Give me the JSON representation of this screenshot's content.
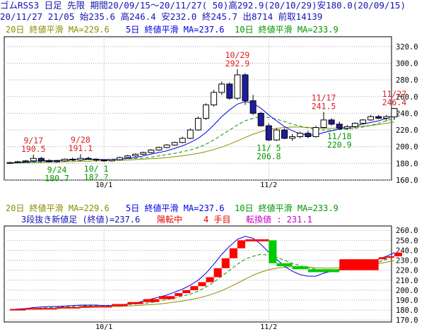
{
  "header": {
    "line1": "ゴムRSS3 日足 先限 期間20/09/15～20/11/27( 50)高292.9(20/10/29)安180.0(20/09/15)",
    "line2": "20/11/27 21/05 始235.6 高246.4 安232.0 終245.7 出8714 前取14139"
  },
  "colors": {
    "up_candle": "#ffffff",
    "down_candle": "#1e1ea0",
    "ma20": "#8c8c00",
    "ma5": "#0000e6",
    "ma10": "#009600",
    "high_label": "#dc1e1e",
    "low_label": "#009600",
    "brick_up": "#ff0000",
    "brick_down": "#00cc00",
    "grid": "#a8a8a8",
    "axis_text": "#000000"
  },
  "chart_data": [
    {
      "type": "candlestick",
      "legend": {
        "ma20": "20日 終値平滑 MA=229.6",
        "ma5": "5日 終値平滑 MA=237.6",
        "ma10": "10日 終値平滑 MA=233.9"
      },
      "y_ticks": [
        "320.0",
        "300.0",
        "280.0",
        "260.0",
        "240.0",
        "220.0",
        "200.0",
        "180.0",
        "160.0"
      ],
      "ylim": [
        160,
        330
      ],
      "x_ticks": [
        {
          "label": "10/1",
          "index": 12
        },
        {
          "label": "11/2",
          "index": 33
        }
      ],
      "candles": [
        [
          180.0,
          182.0,
          179.5,
          181.0
        ],
        [
          181.0,
          183.0,
          180.0,
          182.0
        ],
        [
          182.0,
          184.0,
          181.0,
          183.0
        ],
        [
          183.0,
          190.5,
          182.0,
          186.0
        ],
        [
          186.0,
          188.0,
          181.0,
          183.0
        ],
        [
          183.0,
          185.0,
          181.0,
          182.0
        ],
        [
          182.0,
          184.0,
          180.7,
          183.0
        ],
        [
          183.0,
          186.0,
          182.0,
          185.0
        ],
        [
          185.0,
          187.0,
          183.0,
          184.0
        ],
        [
          184.0,
          191.1,
          183.0,
          186.0
        ],
        [
          186.0,
          188.0,
          184.0,
          185.0
        ],
        [
          185.0,
          186.0,
          182.0,
          184.0
        ],
        [
          184.0,
          185.0,
          182.0,
          183.0
        ],
        [
          183.0,
          185.0,
          182.0,
          184.5
        ],
        [
          184.5,
          188.0,
          184.0,
          187.0
        ],
        [
          187.0,
          190.0,
          186.0,
          189.0
        ],
        [
          189.0,
          192.0,
          188.0,
          191.0
        ],
        [
          191.0,
          194.0,
          190.0,
          193.0
        ],
        [
          193.0,
          197.0,
          192.0,
          196.0
        ],
        [
          196.0,
          200.0,
          195.0,
          199.0
        ],
        [
          199.0,
          203.0,
          198.0,
          202.0
        ],
        [
          202.0,
          206.0,
          201.0,
          205.0
        ],
        [
          205.0,
          212.0,
          204.0,
          210.0
        ],
        [
          210.0,
          222.0,
          209.0,
          220.0
        ],
        [
          220.0,
          236.0,
          219.0,
          234.0
        ],
        [
          234.0,
          252.0,
          232.0,
          250.0
        ],
        [
          250.0,
          268.0,
          248.0,
          265.0
        ],
        [
          265.0,
          278.0,
          262.0,
          275.0
        ],
        [
          275.0,
          277.0,
          256.0,
          258.0
        ],
        [
          258.0,
          292.9,
          256.0,
          286.0
        ],
        [
          286.0,
          288.0,
          250.0,
          255.0
        ],
        [
          255.0,
          262.0,
          238.0,
          240.0
        ],
        [
          240.0,
          242.0,
          224.0,
          225.0
        ],
        [
          225.0,
          228.0,
          206.8,
          208.0
        ],
        [
          208.0,
          222.0,
          207.0,
          220.0
        ],
        [
          220.0,
          222.0,
          209.0,
          210.0
        ],
        [
          210.0,
          215.0,
          207.0,
          212.0
        ],
        [
          212.0,
          218.0,
          210.0,
          216.0
        ],
        [
          216.0,
          219.0,
          210.0,
          212.0
        ],
        [
          212.0,
          225.0,
          211.0,
          223.0
        ],
        [
          223.0,
          241.5,
          222.0,
          232.0
        ],
        [
          232.0,
          234.0,
          225.0,
          227.0
        ],
        [
          227.0,
          230.0,
          220.9,
          222.0
        ],
        [
          222.0,
          226.0,
          220.0,
          224.0
        ],
        [
          224.0,
          229.0,
          222.0,
          228.0
        ],
        [
          228.0,
          233.0,
          227.0,
          232.0
        ],
        [
          232.0,
          238.0,
          231.0,
          236.0
        ],
        [
          236.0,
          238.0,
          233.0,
          234.0
        ],
        [
          234.0,
          238.0,
          231.0,
          236.0
        ],
        [
          235.6,
          246.4,
          232.0,
          245.7
        ]
      ],
      "ma5_values": [
        180.5,
        181.0,
        181.5,
        182.5,
        183.0,
        183.5,
        183.5,
        184.0,
        184.5,
        185.0,
        185.0,
        185.0,
        184.5,
        184.5,
        185.0,
        186.0,
        187.0,
        189.0,
        191.0,
        193.0,
        195.0,
        198.0,
        201.0,
        205.0,
        210.0,
        217.0,
        226.0,
        236.0,
        244.0,
        251.0,
        254.0,
        252.0,
        246.0,
        238.0,
        231.0,
        224.0,
        219.0,
        215.5,
        214.0,
        214.0,
        217.0,
        219.0,
        221.0,
        223.0,
        225.0,
        227.0,
        229.0,
        231.0,
        234.0,
        237.6
      ],
      "ma10_values": [
        180.5,
        181.0,
        181.0,
        181.5,
        182.0,
        182.5,
        183.0,
        183.5,
        183.5,
        184.0,
        184.5,
        184.5,
        184.5,
        185.0,
        185.0,
        185.5,
        186.0,
        186.5,
        187.5,
        189.0,
        190.5,
        192.0,
        194.0,
        196.0,
        199.0,
        203.0,
        208.0,
        214.0,
        220.0,
        226.0,
        231.0,
        234.0,
        236.0,
        235.0,
        233.0,
        230.0,
        227.0,
        224.5,
        222.5,
        221.0,
        220.0,
        220.0,
        220.5,
        221.0,
        222.0,
        223.5,
        225.5,
        228.0,
        231.0,
        233.9
      ],
      "ma20_values": [
        180.0,
        180.5,
        180.5,
        181.0,
        181.0,
        181.5,
        181.5,
        182.0,
        182.0,
        182.5,
        182.5,
        183.0,
        183.0,
        183.5,
        183.5,
        184.0,
        184.5,
        185.0,
        185.5,
        186.0,
        187.0,
        188.0,
        189.0,
        190.5,
        192.0,
        194.0,
        196.5,
        199.5,
        203.0,
        207.0,
        211.0,
        215.0,
        218.0,
        220.5,
        222.0,
        223.0,
        223.5,
        223.5,
        223.0,
        222.5,
        222.0,
        222.0,
        222.5,
        223.0,
        223.5,
        224.5,
        225.5,
        226.5,
        228.0,
        229.6
      ],
      "annotations": [
        {
          "index": 3,
          "date": "9/17",
          "value": "190.5",
          "kind": "high"
        },
        {
          "index": 9,
          "date": "9/28",
          "value": "191.1",
          "kind": "high"
        },
        {
          "index": 6,
          "date": "9/24",
          "value": "180.7",
          "kind": "low"
        },
        {
          "index": 11,
          "date": "10/ 1",
          "value": "18?.?",
          "kind": "low"
        },
        {
          "index": 29,
          "date": "10/29",
          "value": "292.9",
          "kind": "high"
        },
        {
          "index": 33,
          "date": "11/ 5",
          "value": "206.8",
          "kind": "low"
        },
        {
          "index": 40,
          "date": "11/17",
          "value": "241.5",
          "kind": "high"
        },
        {
          "index": 42,
          "date": "11/18",
          "value": "220.9",
          "kind": "low"
        },
        {
          "index": 49,
          "date": "11/27",
          "value": "246.4",
          "kind": "high"
        }
      ]
    },
    {
      "type": "three_line_break",
      "legend": {
        "ma20": "20日 終値平滑 MA=229.6",
        "ma5": "5日 終値平滑 MA=237.6",
        "ma10": "10日 終値平滑 MA=233.9"
      },
      "info": {
        "title": "3段抜き新値足 (終値)=237.6",
        "status": "陽転中",
        "count": "4 手目",
        "reversal": "転換値 : 231.1"
      },
      "y_ticks": [
        "260.0",
        "250.0",
        "240.0",
        "230.0",
        "220.0",
        "210.0",
        "200.0",
        "190.0",
        "180.0",
        "170.0"
      ],
      "ylim": [
        168,
        263
      ],
      "x_ticks": [
        {
          "label": "10/1",
          "index": 12
        },
        {
          "label": "11/2",
          "index": 33
        }
      ],
      "bricks": [
        [
          0,
          2,
          180.0,
          181.0,
          "up"
        ],
        [
          2,
          6,
          181.0,
          182.0,
          "up"
        ],
        [
          6,
          9,
          182.0,
          183.0,
          "up"
        ],
        [
          9,
          13,
          183.0,
          184.0,
          "up"
        ],
        [
          13,
          15,
          184.0,
          186.0,
          "up"
        ],
        [
          15,
          17,
          186.0,
          188.0,
          "up"
        ],
        [
          17,
          19,
          188.0,
          191.0,
          "up"
        ],
        [
          19,
          21,
          191.0,
          194.0,
          "up"
        ],
        [
          21,
          22,
          194.0,
          197.0,
          "up"
        ],
        [
          22,
          23,
          197.0,
          200.0,
          "up"
        ],
        [
          23,
          24,
          200.0,
          204.0,
          "up"
        ],
        [
          24,
          25,
          204.0,
          208.0,
          "up"
        ],
        [
          25,
          26,
          208.0,
          213.0,
          "up"
        ],
        [
          26,
          27,
          213.0,
          222.0,
          "up"
        ],
        [
          27,
          28,
          222.0,
          232.0,
          "up"
        ],
        [
          28,
          29,
          232.0,
          242.0,
          "up"
        ],
        [
          29,
          30,
          242.0,
          250.0,
          "up"
        ],
        [
          30,
          33,
          249.0,
          251.0,
          "up"
        ],
        [
          33,
          34,
          250.0,
          227.0,
          "down"
        ],
        [
          34,
          36,
          227.0,
          224.0,
          "down"
        ],
        [
          36,
          38,
          224.0,
          221.0,
          "down"
        ],
        [
          38,
          42,
          221.0,
          218.0,
          "down"
        ],
        [
          42,
          47,
          220.0,
          231.0,
          "up"
        ],
        [
          47,
          48,
          231.0,
          233.0,
          "up"
        ],
        [
          48,
          49,
          233.0,
          234.0,
          "up"
        ],
        [
          49,
          50,
          234.0,
          237.6,
          "up"
        ]
      ],
      "ma_values_index": "same as chart 0"
    }
  ]
}
